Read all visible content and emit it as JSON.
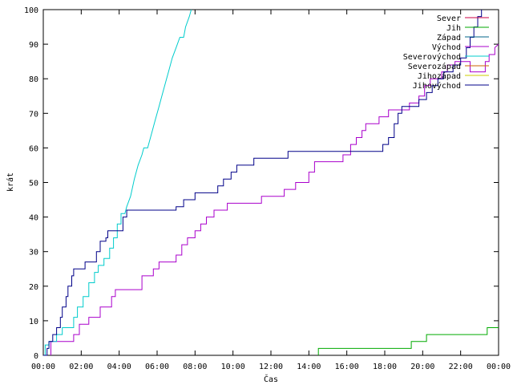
{
  "chart_data": {
    "type": "line",
    "title": "",
    "xlabel": "Čas",
    "ylabel": "krát",
    "x_unit": "hours",
    "xlim": [
      0,
      24
    ],
    "ylim": [
      0,
      100
    ],
    "x_ticks": [
      {
        "value": 0,
        "label": "00:00"
      },
      {
        "value": 2,
        "label": "02:00"
      },
      {
        "value": 4,
        "label": "04:00"
      },
      {
        "value": 6,
        "label": "06:00"
      },
      {
        "value": 8,
        "label": "08:00"
      },
      {
        "value": 10,
        "label": "10:00"
      },
      {
        "value": 12,
        "label": "12:00"
      },
      {
        "value": 14,
        "label": "14:00"
      },
      {
        "value": 16,
        "label": "16:00"
      },
      {
        "value": 18,
        "label": "18:00"
      },
      {
        "value": 20,
        "label": "20:00"
      },
      {
        "value": 22,
        "label": "22:00"
      },
      {
        "value": 24,
        "label": "00:00"
      }
    ],
    "y_ticks": [
      0,
      10,
      20,
      30,
      40,
      50,
      60,
      70,
      80,
      90,
      100
    ],
    "grid": false,
    "legend_position": "top-right",
    "series": [
      {
        "name": "Sever",
        "color": "#cc0044",
        "points": []
      },
      {
        "name": "Jih",
        "color": "#00aa00",
        "points": [
          [
            14.5,
            0
          ],
          [
            14.5,
            2
          ],
          [
            19.4,
            2
          ],
          [
            19.4,
            4
          ],
          [
            20.2,
            4
          ],
          [
            20.2,
            6
          ],
          [
            23.4,
            6
          ],
          [
            23.4,
            8
          ],
          [
            24,
            8
          ]
        ]
      },
      {
        "name": "Západ",
        "color": "#006688",
        "points": []
      },
      {
        "name": "Východ",
        "color": "#aa00cc",
        "points": [
          [
            0.4,
            0
          ],
          [
            0.4,
            4
          ],
          [
            1.6,
            4
          ],
          [
            1.6,
            6
          ],
          [
            1.9,
            6
          ],
          [
            1.9,
            9
          ],
          [
            2.4,
            9
          ],
          [
            2.4,
            11
          ],
          [
            3.0,
            11
          ],
          [
            3.0,
            14
          ],
          [
            3.6,
            14
          ],
          [
            3.6,
            17
          ],
          [
            3.8,
            17
          ],
          [
            3.8,
            19
          ],
          [
            5.2,
            19
          ],
          [
            5.2,
            23
          ],
          [
            5.8,
            23
          ],
          [
            5.8,
            25
          ],
          [
            6.1,
            25
          ],
          [
            6.1,
            27
          ],
          [
            7.0,
            27
          ],
          [
            7.0,
            29
          ],
          [
            7.3,
            29
          ],
          [
            7.3,
            32
          ],
          [
            7.6,
            32
          ],
          [
            7.6,
            34
          ],
          [
            8.0,
            34
          ],
          [
            8.0,
            36
          ],
          [
            8.3,
            36
          ],
          [
            8.3,
            38
          ],
          [
            8.6,
            38
          ],
          [
            8.6,
            40
          ],
          [
            9.0,
            40
          ],
          [
            9.0,
            42
          ],
          [
            9.7,
            42
          ],
          [
            9.7,
            44
          ],
          [
            11.5,
            44
          ],
          [
            11.5,
            46
          ],
          [
            12.7,
            46
          ],
          [
            12.7,
            48
          ],
          [
            13.3,
            48
          ],
          [
            13.3,
            50
          ],
          [
            14.0,
            50
          ],
          [
            14.0,
            53
          ],
          [
            14.3,
            53
          ],
          [
            14.3,
            56
          ],
          [
            15.8,
            56
          ],
          [
            15.8,
            58
          ],
          [
            16.2,
            58
          ],
          [
            16.2,
            61
          ],
          [
            16.5,
            61
          ],
          [
            16.5,
            63
          ],
          [
            16.8,
            63
          ],
          [
            16.8,
            65
          ],
          [
            17.0,
            65
          ],
          [
            17.0,
            67
          ],
          [
            17.7,
            67
          ],
          [
            17.7,
            69
          ],
          [
            18.2,
            69
          ],
          [
            18.2,
            71
          ],
          [
            19.3,
            71
          ],
          [
            19.3,
            73
          ],
          [
            19.8,
            73
          ],
          [
            19.8,
            75
          ],
          [
            20.1,
            75
          ],
          [
            20.1,
            78
          ],
          [
            20.4,
            78
          ],
          [
            20.4,
            80
          ],
          [
            21.0,
            80
          ],
          [
            21.0,
            82
          ],
          [
            21.3,
            82
          ],
          [
            21.3,
            84
          ],
          [
            21.7,
            84
          ],
          [
            21.7,
            85
          ],
          [
            22.5,
            85
          ],
          [
            22.5,
            82
          ],
          [
            23.3,
            82
          ],
          [
            23.3,
            85
          ],
          [
            23.5,
            85
          ],
          [
            23.5,
            87
          ],
          [
            23.8,
            87
          ],
          [
            23.8,
            89
          ],
          [
            24,
            90
          ]
        ]
      },
      {
        "name": "Severovýchod",
        "color": "#00cccc",
        "points": [
          [
            0,
            0
          ],
          [
            0.1,
            0
          ],
          [
            0.1,
            3
          ],
          [
            0.3,
            3
          ],
          [
            0.3,
            4
          ],
          [
            0.7,
            4
          ],
          [
            0.7,
            6
          ],
          [
            1.0,
            6
          ],
          [
            1.0,
            8
          ],
          [
            1.6,
            8
          ],
          [
            1.6,
            11
          ],
          [
            1.8,
            11
          ],
          [
            1.8,
            14
          ],
          [
            2.1,
            14
          ],
          [
            2.1,
            17
          ],
          [
            2.4,
            17
          ],
          [
            2.4,
            21
          ],
          [
            2.7,
            21
          ],
          [
            2.7,
            24
          ],
          [
            2.9,
            24
          ],
          [
            2.9,
            26
          ],
          [
            3.2,
            26
          ],
          [
            3.2,
            28
          ],
          [
            3.5,
            28
          ],
          [
            3.5,
            31
          ],
          [
            3.7,
            31
          ],
          [
            3.7,
            34
          ],
          [
            3.9,
            34
          ],
          [
            3.9,
            38
          ],
          [
            4.1,
            38
          ],
          [
            4.1,
            41
          ],
          [
            4.3,
            41
          ],
          [
            4.4,
            43
          ],
          [
            4.6,
            46
          ],
          [
            4.8,
            51
          ],
          [
            5.0,
            55
          ],
          [
            5.2,
            58
          ],
          [
            5.3,
            60
          ],
          [
            5.5,
            60
          ],
          [
            5.7,
            64
          ],
          [
            5.9,
            68
          ],
          [
            6.1,
            72
          ],
          [
            6.3,
            76
          ],
          [
            6.5,
            80
          ],
          [
            6.6,
            82
          ],
          [
            6.8,
            86
          ],
          [
            7.0,
            89
          ],
          [
            7.2,
            92
          ],
          [
            7.4,
            92
          ],
          [
            7.5,
            95
          ],
          [
            7.7,
            98
          ],
          [
            7.8,
            100
          ]
        ]
      },
      {
        "name": "Severozápad",
        "color": "#cc6600",
        "points": []
      },
      {
        "name": "Jihozápad",
        "color": "#cccc00",
        "points": []
      },
      {
        "name": "Jihovýchod",
        "color": "#000088",
        "points": [
          [
            0,
            0
          ],
          [
            0.2,
            0
          ],
          [
            0.2,
            2
          ],
          [
            0.3,
            2
          ],
          [
            0.3,
            4
          ],
          [
            0.5,
            4
          ],
          [
            0.5,
            6
          ],
          [
            0.7,
            6
          ],
          [
            0.7,
            8
          ],
          [
            0.9,
            8
          ],
          [
            0.9,
            11
          ],
          [
            1.0,
            11
          ],
          [
            1.0,
            14
          ],
          [
            1.2,
            14
          ],
          [
            1.2,
            17
          ],
          [
            1.3,
            17
          ],
          [
            1.3,
            20
          ],
          [
            1.5,
            20
          ],
          [
            1.5,
            23
          ],
          [
            1.6,
            23
          ],
          [
            1.6,
            25
          ],
          [
            2.2,
            25
          ],
          [
            2.2,
            27
          ],
          [
            2.8,
            27
          ],
          [
            2.8,
            30
          ],
          [
            3.0,
            30
          ],
          [
            3.0,
            33
          ],
          [
            3.3,
            33
          ],
          [
            3.3,
            34
          ],
          [
            3.4,
            34
          ],
          [
            3.4,
            36
          ],
          [
            4.2,
            36
          ],
          [
            4.2,
            40
          ],
          [
            4.4,
            40
          ],
          [
            4.4,
            42
          ],
          [
            7.0,
            42
          ],
          [
            7.0,
            43
          ],
          [
            7.4,
            43
          ],
          [
            7.4,
            45
          ],
          [
            8.0,
            45
          ],
          [
            8.0,
            47
          ],
          [
            9.2,
            47
          ],
          [
            9.2,
            49
          ],
          [
            9.5,
            49
          ],
          [
            9.5,
            51
          ],
          [
            9.9,
            51
          ],
          [
            9.9,
            53
          ],
          [
            10.2,
            53
          ],
          [
            10.2,
            55
          ],
          [
            11.1,
            55
          ],
          [
            11.1,
            57
          ],
          [
            12.9,
            57
          ],
          [
            12.9,
            59
          ],
          [
            17.9,
            59
          ],
          [
            17.9,
            61
          ],
          [
            18.2,
            61
          ],
          [
            18.2,
            63
          ],
          [
            18.5,
            63
          ],
          [
            18.5,
            67
          ],
          [
            18.7,
            67
          ],
          [
            18.7,
            70
          ],
          [
            18.9,
            70
          ],
          [
            18.9,
            72
          ],
          [
            19.8,
            72
          ],
          [
            19.8,
            74
          ],
          [
            20.2,
            74
          ],
          [
            20.2,
            76
          ],
          [
            20.5,
            76
          ],
          [
            20.5,
            78
          ],
          [
            20.8,
            78
          ],
          [
            20.8,
            80
          ],
          [
            21.1,
            80
          ],
          [
            21.1,
            82
          ],
          [
            21.6,
            82
          ],
          [
            21.6,
            84
          ],
          [
            22.0,
            84
          ],
          [
            22.0,
            86
          ],
          [
            22.3,
            86
          ],
          [
            22.3,
            89
          ],
          [
            22.5,
            89
          ],
          [
            22.5,
            92
          ],
          [
            22.7,
            92
          ],
          [
            22.7,
            95
          ],
          [
            22.9,
            95
          ],
          [
            22.9,
            98
          ],
          [
            23.1,
            98
          ],
          [
            23.1,
            100
          ]
        ]
      }
    ]
  }
}
